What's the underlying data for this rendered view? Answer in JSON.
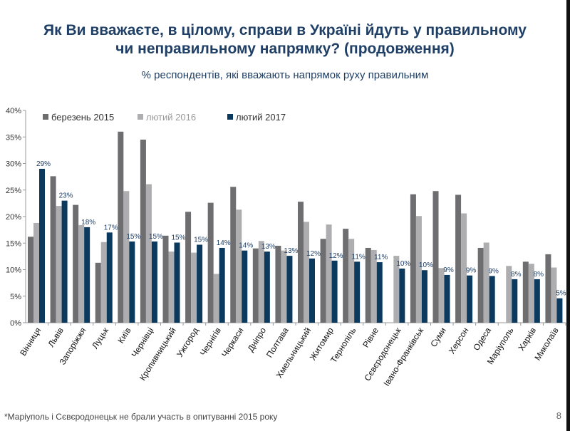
{
  "title_line1": "Як Ви вважаєте, в цілому, справи в Україні йдуть у правильному",
  "title_line2": "чи неправильному напрямку? (продовження)",
  "footnote": "*Маріуполь і Сєвєродонецьк не брали участь в опитуванні 2015 року",
  "page_number": "8",
  "chart_data": {
    "type": "bar",
    "title": "% респондентів, які вважають напрямок руху правильним",
    "ylim": [
      0,
      40
    ],
    "yticks": [
      "0%",
      "5%",
      "10%",
      "15%",
      "20%",
      "25%",
      "30%",
      "35%",
      "40%"
    ],
    "legend_placement": "top-left",
    "categories": [
      "Вінниця",
      "Львів",
      "Запоріжжя",
      "Луцьк",
      "Київ",
      "Чернівці",
      "Кропивницький",
      "Ужгород",
      "Чернігів",
      "Черкаси",
      "Дніпро",
      "Полтава",
      "Хмельницький",
      "Житомир",
      "Тернопіль",
      "Рівне",
      "Сєвєродонецьк",
      "Івано-Франківськ",
      "Суми",
      "Херсон",
      "Одеса",
      "Маріуполь",
      "Харків",
      "Миколаїв"
    ],
    "series": [
      {
        "name": "березень 2015",
        "color": "#6e6e70",
        "values": [
          16.2,
          27.6,
          22.2,
          11.3,
          36,
          34.5,
          16.4,
          20.9,
          22.6,
          25.6,
          14.0,
          14.5,
          22.8,
          15.8,
          17.7,
          14.1,
          null,
          24.2,
          24.8,
          24.1,
          14.1,
          null,
          11.5,
          12.9
        ]
      },
      {
        "name": "лютий 2016",
        "color": "#aeaeb0",
        "values": [
          18.8,
          22,
          18.4,
          15.2,
          24.8,
          26.1,
          13.4,
          13.2,
          9.2,
          21.3,
          15.4,
          13.6,
          19.0,
          18.5,
          15.8,
          13.7,
          12.6,
          20.1,
          10.3,
          20.6,
          15.1,
          10.7,
          11.1,
          10.4
        ]
      },
      {
        "name": "лютий 2017",
        "color": "#0b3a5e",
        "values": [
          29,
          23,
          18,
          17,
          15.3,
          15.3,
          15.1,
          14.7,
          14.1,
          13.6,
          13.4,
          12.6,
          12.1,
          11.7,
          11.5,
          11.4,
          10.2,
          9.9,
          9.0,
          8.9,
          8.8,
          8.2,
          8.2,
          4.6
        ],
        "labels": [
          "29%",
          "23%",
          "18%",
          "17%",
          "15%",
          "15%",
          "15%",
          "15%",
          "14%",
          "14%",
          "13%",
          "13%",
          "12%",
          "12%",
          "11%",
          "11%",
          "10%",
          "10%",
          "9%",
          "9%",
          "9%",
          "8%",
          "8%",
          "5%"
        ]
      }
    ]
  }
}
